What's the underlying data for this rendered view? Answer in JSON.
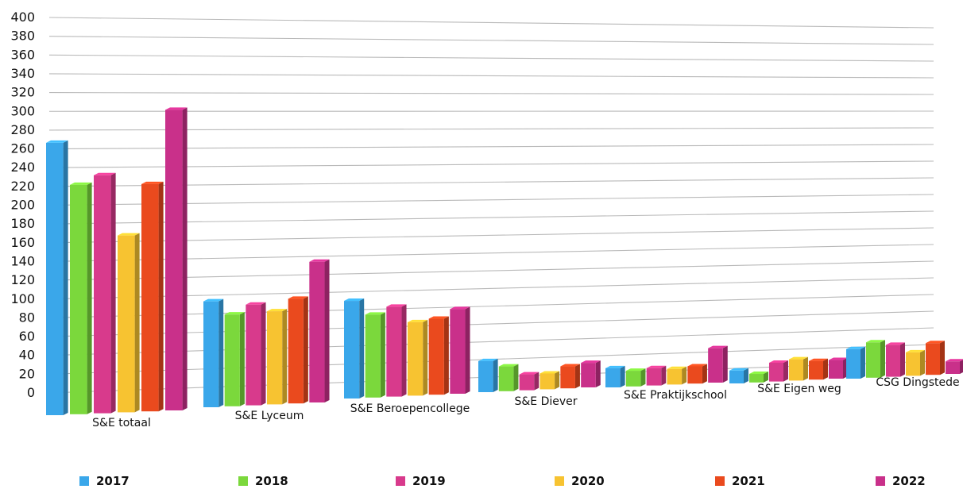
{
  "chart_data": {
    "type": "bar",
    "categories": [
      "S&E totaal",
      "S&E Lyceum",
      "S&E Beroepencollege",
      "S&E Diever",
      "S&E Praktijkschool",
      "S&E Eigen weg",
      "CSG Dingstede"
    ],
    "series": [
      {
        "name": "2017",
        "color": "#3aa7ea",
        "values": [
          290,
          115,
          108,
          35,
          22,
          15,
          35
        ]
      },
      {
        "name": "2018",
        "color": "#7bd83c",
        "values": [
          245,
          100,
          92,
          28,
          18,
          10,
          42
        ]
      },
      {
        "name": "2019",
        "color": "#d83a8c",
        "values": [
          255,
          110,
          100,
          18,
          20,
          22,
          38
        ]
      },
      {
        "name": "2020",
        "color": "#f7c331",
        "values": [
          190,
          102,
          82,
          18,
          18,
          25,
          28
        ]
      },
      {
        "name": "2021",
        "color": "#ea4a1e",
        "values": [
          245,
          115,
          85,
          25,
          20,
          22,
          38
        ]
      },
      {
        "name": "2022",
        "color": "#c9308a",
        "values": [
          325,
          155,
          95,
          28,
          40,
          22,
          15
        ]
      }
    ],
    "yticks": [
      0,
      20,
      40,
      60,
      80,
      100,
      120,
      140,
      160,
      180,
      200,
      220,
      240,
      260,
      280,
      300,
      320,
      340,
      360,
      380,
      400
    ],
    "ylim": [
      0,
      400
    ],
    "grid": true,
    "legend_position": "bottom",
    "title": "",
    "xlabel": "",
    "ylabel": ""
  }
}
